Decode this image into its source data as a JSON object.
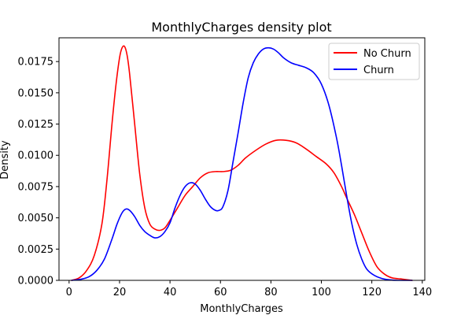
{
  "chart_data": {
    "type": "line",
    "title": "MonthlyCharges density plot",
    "xlabel": "MonthlyCharges",
    "ylabel": "Density",
    "xlim": [
      -4,
      141
    ],
    "ylim": [
      0,
      0.0194
    ],
    "xticks": [
      0,
      20,
      40,
      60,
      80,
      100,
      120,
      140
    ],
    "xtick_labels": [
      "0",
      "20",
      "40",
      "60",
      "80",
      "100",
      "120",
      "140"
    ],
    "yticks": [
      0,
      0.0025,
      0.005,
      0.0075,
      0.01,
      0.0125,
      0.015,
      0.0175
    ],
    "ytick_labels": [
      "0.0000",
      "0.0025",
      "0.0050",
      "0.0075",
      "0.0100",
      "0.0125",
      "0.0150",
      "0.0175"
    ],
    "grid": false,
    "legend_position": "top-right",
    "series": [
      {
        "name": "No Churn",
        "color": "#ff0000",
        "points": [
          [
            1,
            0.0
          ],
          [
            4,
            0.0002
          ],
          [
            7,
            0.0008
          ],
          [
            10,
            0.002
          ],
          [
            13,
            0.0045
          ],
          [
            15,
            0.008
          ],
          [
            17,
            0.0125
          ],
          [
            18.5,
            0.0155
          ],
          [
            20,
            0.0178
          ],
          [
            21,
            0.0186
          ],
          [
            22,
            0.0187
          ],
          [
            23,
            0.018
          ],
          [
            24,
            0.0165
          ],
          [
            26,
            0.0125
          ],
          [
            28,
            0.0085
          ],
          [
            30,
            0.0058
          ],
          [
            32,
            0.0045
          ],
          [
            34,
            0.0041
          ],
          [
            36,
            0.004
          ],
          [
            38,
            0.0042
          ],
          [
            40,
            0.0048
          ],
          [
            43,
            0.0058
          ],
          [
            46,
            0.0068
          ],
          [
            49,
            0.0075
          ],
          [
            52,
            0.0082
          ],
          [
            55,
            0.0086
          ],
          [
            58,
            0.0087
          ],
          [
            61,
            0.0087
          ],
          [
            64,
            0.0088
          ],
          [
            67,
            0.0092
          ],
          [
            70,
            0.0098
          ],
          [
            74,
            0.0104
          ],
          [
            78,
            0.0109
          ],
          [
            82,
            0.0112
          ],
          [
            86,
            0.0112
          ],
          [
            90,
            0.011
          ],
          [
            94,
            0.0105
          ],
          [
            98,
            0.0099
          ],
          [
            102,
            0.0093
          ],
          [
            105,
            0.0086
          ],
          [
            108,
            0.0075
          ],
          [
            110,
            0.0066
          ],
          [
            113,
            0.0053
          ],
          [
            116,
            0.0038
          ],
          [
            119,
            0.0023
          ],
          [
            122,
            0.0011
          ],
          [
            125,
            0.0005
          ],
          [
            128,
            0.0002
          ],
          [
            132,
            0.0001
          ],
          [
            136,
            0.0
          ]
        ]
      },
      {
        "name": "Churn",
        "color": "#0000ff",
        "points": [
          [
            1,
            0.0
          ],
          [
            5,
            0.0001
          ],
          [
            8,
            0.0003
          ],
          [
            11,
            0.0008
          ],
          [
            14,
            0.0017
          ],
          [
            17,
            0.0033
          ],
          [
            19,
            0.0045
          ],
          [
            21,
            0.0054
          ],
          [
            22.5,
            0.0057
          ],
          [
            24,
            0.0056
          ],
          [
            26,
            0.0051
          ],
          [
            28,
            0.0044
          ],
          [
            30,
            0.0039
          ],
          [
            32,
            0.0036
          ],
          [
            34,
            0.0034
          ],
          [
            36,
            0.0035
          ],
          [
            38,
            0.0039
          ],
          [
            40,
            0.0046
          ],
          [
            42,
            0.0058
          ],
          [
            44,
            0.0068
          ],
          [
            46,
            0.0075
          ],
          [
            48,
            0.0078
          ],
          [
            50,
            0.0077
          ],
          [
            52,
            0.0072
          ],
          [
            54,
            0.0065
          ],
          [
            56,
            0.0059
          ],
          [
            58,
            0.0056
          ],
          [
            59.5,
            0.0056
          ],
          [
            61,
            0.0059
          ],
          [
            63,
            0.0072
          ],
          [
            65,
            0.0095
          ],
          [
            67,
            0.0118
          ],
          [
            69,
            0.0142
          ],
          [
            71,
            0.0162
          ],
          [
            73,
            0.0174
          ],
          [
            75,
            0.0181
          ],
          [
            77,
            0.0185
          ],
          [
            79,
            0.0186
          ],
          [
            81,
            0.0185
          ],
          [
            83,
            0.0182
          ],
          [
            85,
            0.0178
          ],
          [
            88,
            0.0174
          ],
          [
            91,
            0.0172
          ],
          [
            94,
            0.017
          ],
          [
            97,
            0.0166
          ],
          [
            100,
            0.0157
          ],
          [
            103,
            0.014
          ],
          [
            106,
            0.0114
          ],
          [
            108,
            0.0092
          ],
          [
            110,
            0.0068
          ],
          [
            112,
            0.0046
          ],
          [
            114,
            0.0029
          ],
          [
            116,
            0.0017
          ],
          [
            118,
            0.0009
          ],
          [
            121,
            0.0004
          ],
          [
            125,
            0.0001
          ],
          [
            130,
            0.0
          ],
          [
            136,
            0.0
          ]
        ]
      }
    ]
  }
}
